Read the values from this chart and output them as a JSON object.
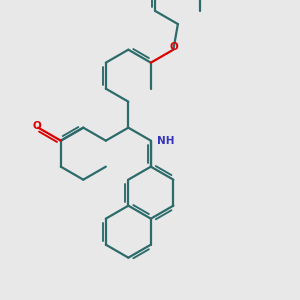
{
  "bg_color": "#e8e8e8",
  "bond_color": "#2d6b6b",
  "bond_width": 1.6,
  "o_color": "#dd0000",
  "n_color": "#3333bb",
  "fig_size": [
    3.0,
    3.0
  ],
  "dpi": 100,
  "xlim": [
    0,
    9
  ],
  "ylim": [
    0,
    9
  ]
}
